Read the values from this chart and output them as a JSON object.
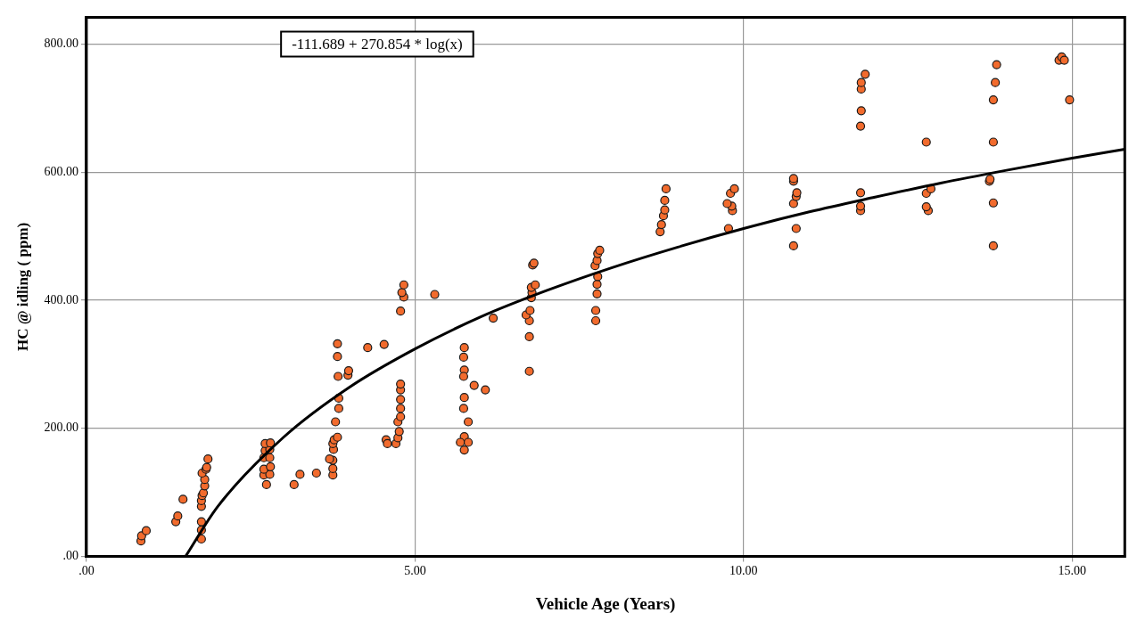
{
  "chart_data": {
    "type": "scatter",
    "xlabel": "Vehicle Age (Years)",
    "ylabel": "HC @ idling ( ppm)",
    "annotations": [
      "-111.689 + 270.854 * log(x)"
    ],
    "xlim": [
      0,
      15.8
    ],
    "ylim": [
      0,
      842
    ],
    "xticks": [
      {
        "value": 0,
        "label": ".00"
      },
      {
        "value": 5,
        "label": "5.00"
      },
      {
        "value": 10,
        "label": "10.00"
      },
      {
        "value": 15,
        "label": "15.00"
      }
    ],
    "yticks": [
      {
        "value": 0,
        "label": ".00"
      },
      {
        "value": 200,
        "label": "200.00"
      },
      {
        "value": 400,
        "label": "400.00"
      },
      {
        "value": 600,
        "label": "600.00"
      },
      {
        "value": 800,
        "label": "800.00"
      }
    ],
    "grid": true,
    "legend": false,
    "marker": "circle",
    "series": [
      {
        "type": "scatter",
        "color": "#f26b2d",
        "x": [
          0.83,
          0.84,
          0.91,
          1.36,
          1.39,
          1.47,
          1.75,
          1.75,
          1.75,
          1.75,
          1.75,
          1.76,
          1.78,
          1.8,
          1.8,
          1.76,
          1.82,
          1.83,
          1.85,
          2.74,
          2.7,
          2.79,
          2.7,
          2.8,
          2.7,
          2.79,
          2.72,
          2.79,
          2.72,
          2.8,
          3.16,
          3.25,
          3.5,
          3.75,
          3.75,
          3.75,
          3.7,
          3.76,
          3.75,
          3.77,
          3.82,
          3.79,
          3.84,
          3.84,
          3.83,
          3.98,
          3.99,
          3.82,
          3.82,
          4.28,
          4.53,
          4.56,
          4.58,
          4.71,
          4.74,
          4.76,
          4.74,
          4.78,
          4.78,
          4.78,
          4.78,
          4.78,
          4.78,
          4.83,
          4.8,
          4.83,
          5.3,
          5.75,
          5.74,
          5.75,
          5.74,
          5.9,
          6.07,
          5.75,
          5.74,
          5.81,
          5.75,
          5.69,
          5.81,
          5.75,
          6.19,
          6.74,
          6.74,
          6.74,
          6.69,
          6.75,
          6.77,
          6.78,
          6.77,
          6.83,
          6.79,
          6.81,
          7.75,
          7.75,
          7.77,
          7.77,
          7.78,
          7.74,
          7.77,
          7.78,
          7.81,
          8.73,
          8.75,
          8.78,
          8.8,
          8.8,
          8.82,
          9.77,
          9.83,
          9.82,
          9.75,
          9.8,
          9.86,
          10.76,
          10.8,
          10.76,
          10.8,
          10.81,
          10.76,
          10.76,
          11.78,
          11.78,
          11.78,
          11.78,
          11.79,
          11.79,
          11.79,
          11.85,
          12.78,
          12.81,
          12.78,
          12.78,
          12.85,
          13.8,
          13.8,
          13.74,
          13.75,
          13.8,
          13.8,
          13.83,
          13.85,
          14.8,
          14.84,
          14.88,
          14.96
        ],
        "values": [
          24,
          32,
          40,
          54,
          63,
          89,
          27,
          41,
          54,
          78,
          87,
          95,
          99,
          110,
          120,
          130,
          136,
          139,
          152,
          112,
          127,
          128,
          136,
          140,
          154,
          154,
          165,
          167,
          176,
          177,
          112,
          128,
          130,
          127,
          137,
          150,
          152,
          167,
          176,
          182,
          186,
          210,
          231,
          247,
          281,
          283,
          290,
          312,
          332,
          326,
          331,
          182,
          176,
          176,
          185,
          195,
          210,
          218,
          231,
          245,
          260,
          269,
          383,
          405,
          412,
          424,
          409,
          326,
          311,
          291,
          281,
          267,
          260,
          248,
          231,
          210,
          187,
          178,
          178,
          166,
          372,
          289,
          343,
          368,
          377,
          384,
          404,
          412,
          420,
          424,
          455,
          458,
          368,
          384,
          410,
          425,
          437,
          454,
          462,
          473,
          478,
          507,
          518,
          532,
          541,
          556,
          574,
          512,
          540,
          547,
          551,
          567,
          574,
          485,
          512,
          551,
          562,
          568,
          586,
          590,
          540,
          547,
          568,
          672,
          696,
          730,
          740,
          753,
          647,
          540,
          546,
          567,
          574,
          485,
          552,
          586,
          589,
          647,
          713,
          740,
          768,
          775,
          780,
          775,
          713
        ]
      },
      {
        "type": "line",
        "color": "#000000",
        "marker": "none",
        "line_style": "solid",
        "x": [
          1.51,
          2,
          3,
          4,
          5,
          6,
          7,
          8,
          9,
          10,
          11,
          12,
          13,
          14,
          15,
          15.8
        ],
        "values": [
          0,
          78,
          186,
          264,
          324,
          374,
          415,
          451,
          483,
          512,
          538,
          561,
          583,
          603,
          622,
          636
        ]
      }
    ]
  }
}
